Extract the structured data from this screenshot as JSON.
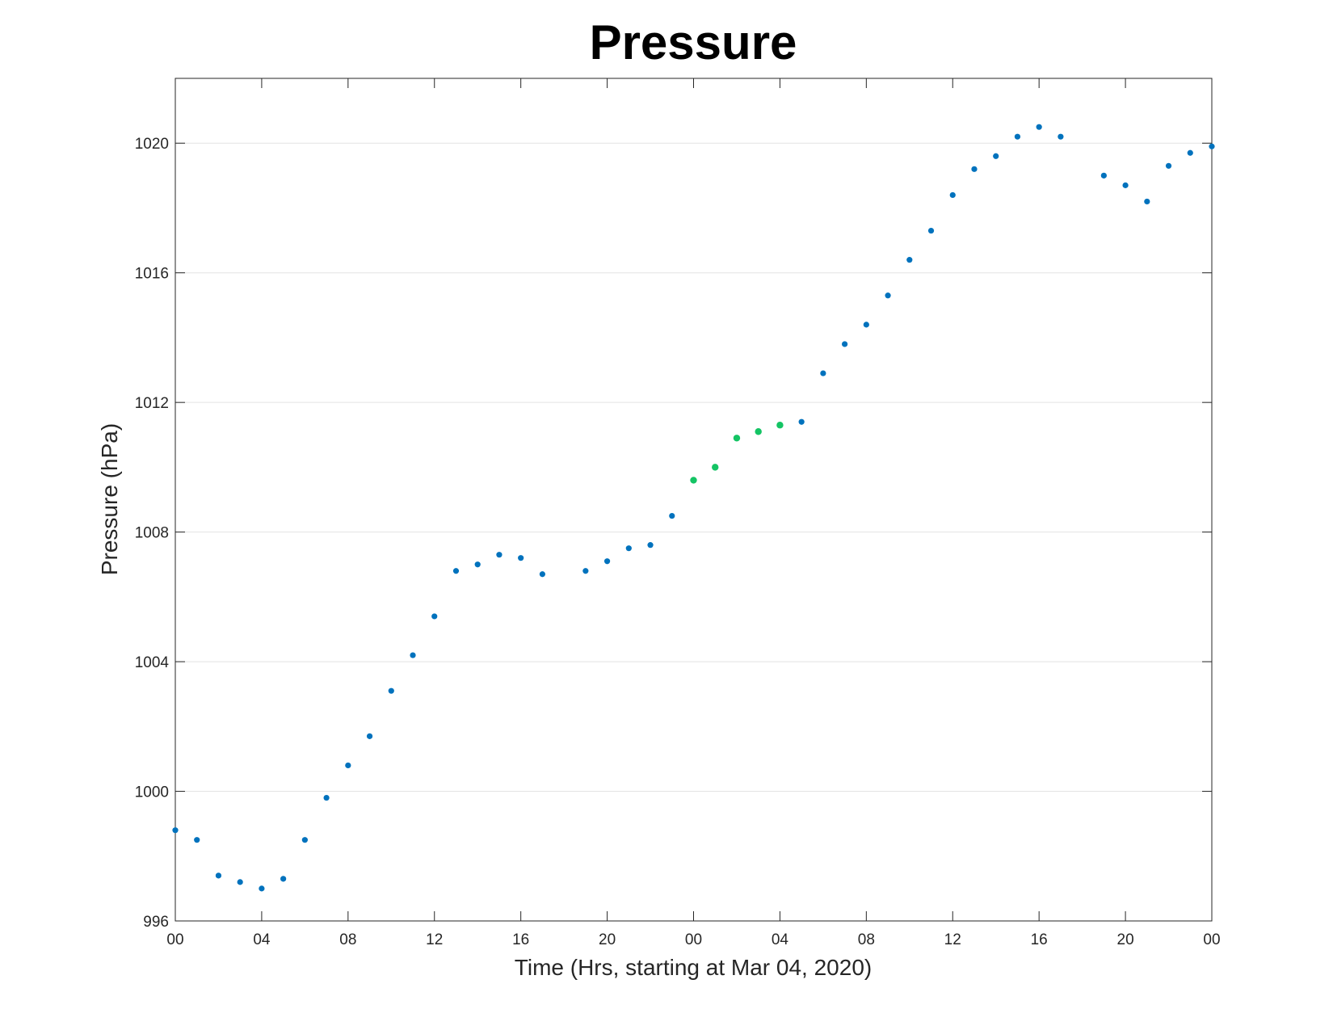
{
  "chart_data": {
    "type": "scatter",
    "title": "Pressure",
    "xlabel": "Time (Hrs, starting at Mar 04, 2020)",
    "ylabel": "Pressure (hPa)",
    "x_unit": "hours",
    "xlim": [
      0,
      48
    ],
    "ylim": [
      996,
      1022
    ],
    "x_ticks": [
      0,
      4,
      8,
      12,
      16,
      20,
      24,
      28,
      32,
      36,
      40,
      44,
      48
    ],
    "x_tick_labels": [
      "00",
      "04",
      "08",
      "12",
      "16",
      "20",
      "00",
      "04",
      "08",
      "12",
      "16",
      "20",
      "00"
    ],
    "y_ticks": [
      996,
      1000,
      1004,
      1008,
      1012,
      1016,
      1020
    ],
    "y_tick_labels": [
      "996",
      "1000",
      "1004",
      "1008",
      "1012",
      "1016",
      "1020"
    ],
    "grid": "horizontal",
    "series": [
      {
        "color": "#0072BD",
        "x": [
          0,
          1,
          2,
          3,
          4,
          5,
          6,
          7,
          8,
          9,
          10,
          11,
          12,
          13,
          14,
          15,
          16,
          17,
          19,
          20,
          21,
          22,
          23,
          29,
          30,
          31,
          32,
          33,
          34,
          35,
          36,
          37,
          38,
          39,
          40,
          41,
          43,
          44,
          45,
          46,
          47,
          48
        ],
        "y": [
          998.8,
          998.5,
          997.4,
          997.2,
          997.0,
          997.3,
          998.5,
          999.8,
          1000.8,
          1001.7,
          1003.1,
          1004.2,
          1005.4,
          1006.8,
          1007.0,
          1007.3,
          1007.2,
          1006.7,
          1006.8,
          1007.1,
          1007.5,
          1007.6,
          1008.5,
          1011.4,
          1012.9,
          1013.8,
          1014.4,
          1015.3,
          1016.4,
          1017.3,
          1018.4,
          1019.2,
          1019.6,
          1020.2,
          1020.5,
          1020.2,
          1019.0,
          1018.7,
          1018.2,
          1019.3,
          1019.7,
          1019.9
        ]
      },
      {
        "color": "#14C464",
        "x": [
          24,
          25,
          26,
          27,
          28
        ],
        "y": [
          1009.6,
          1010.0,
          1010.9,
          1011.1,
          1011.3
        ]
      }
    ]
  }
}
